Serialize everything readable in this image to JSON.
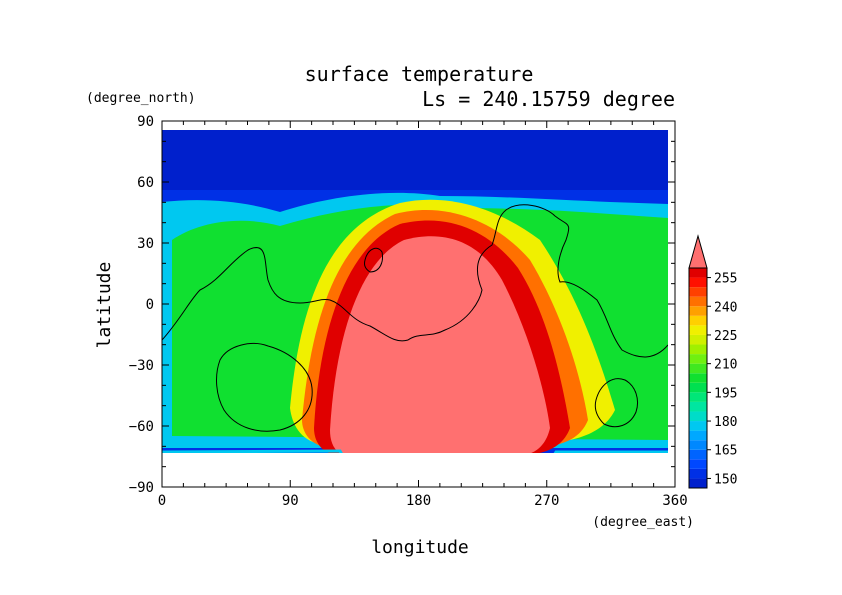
{
  "chart_data": {
    "type": "heatmap",
    "title": "surface temperature",
    "subtitle": "Ls = 240.15759 degree",
    "xlabel": "longitude",
    "ylabel": "latitude",
    "x_units": "(degree_east)",
    "y_units": "(degree_north)",
    "xlim": [
      0,
      360
    ],
    "ylim": [
      -90,
      90
    ],
    "data_lat_range": [
      -85,
      85
    ],
    "x_ticks": [
      "0",
      "90",
      "180",
      "270",
      "360"
    ],
    "y_ticks": [
      "90",
      "60",
      "30",
      "0",
      "−30",
      "−60",
      "−90"
    ],
    "colorbar": {
      "labels": [
        "255",
        "240",
        "225",
        "210",
        "195",
        "180",
        "165",
        "150"
      ],
      "levels": [
        145,
        150,
        155,
        160,
        165,
        170,
        175,
        180,
        185,
        190,
        195,
        200,
        205,
        210,
        215,
        220,
        225,
        230,
        235,
        240,
        245,
        250,
        255,
        260
      ],
      "colors": [
        "#0020cc",
        "#0030e6",
        "#0048ff",
        "#0064ff",
        "#0088ff",
        "#00a8ff",
        "#00c8f0",
        "#00dcc8",
        "#00e6a0",
        "#00e678",
        "#00e050",
        "#10e030",
        "#40e820",
        "#70f010",
        "#a0f000",
        "#d0f000",
        "#f0f000",
        "#ffd000",
        "#ffa000",
        "#ff7000",
        "#ff4000",
        "#ff1000",
        "#e00000",
        "#ff7070"
      ],
      "extend": "max"
    }
  }
}
